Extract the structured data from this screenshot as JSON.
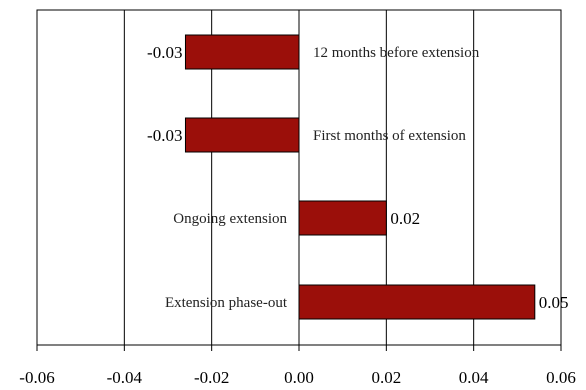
{
  "chart_data": {
    "type": "bar",
    "orientation": "horizontal",
    "categories": [
      "12 months before extension",
      "First months of extension",
      "Ongoing extension",
      "Extension phase-out"
    ],
    "values": [
      -0.026,
      -0.026,
      0.02,
      0.054
    ],
    "value_labels": [
      "-0.03",
      "-0.03",
      "0.02",
      "0.05"
    ],
    "xlim": [
      -0.06,
      0.06
    ],
    "xticks": [
      -0.06,
      -0.04,
      -0.02,
      0.0,
      0.02,
      0.04,
      0.06
    ],
    "xtick_labels": [
      "-0.06",
      "-0.04",
      "-0.02",
      "0.00",
      "0.02",
      "0.04",
      "0.06"
    ],
    "title": "",
    "xlabel": "",
    "ylabel": "",
    "grid": "vertical",
    "legend": "none",
    "bar_color": "#9b0f0a",
    "bar_edge_color": "#000000"
  }
}
